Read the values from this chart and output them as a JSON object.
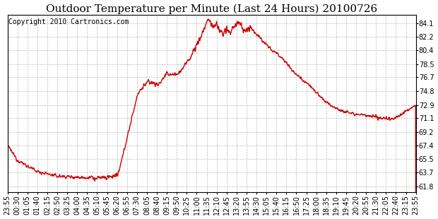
{
  "title": "Outdoor Temperature per Minute (Last 24 Hours) 20100726",
  "copyright_text": "Copyright 2010 Cartronics.com",
  "line_color": "#cc0000",
  "background_color": "#ffffff",
  "plot_bg_color": "#ffffff",
  "grid_color": "#bbbbbb",
  "yticks": [
    61.8,
    63.7,
    65.5,
    67.4,
    69.2,
    71.1,
    72.9,
    74.8,
    76.7,
    78.5,
    80.4,
    82.2,
    84.1
  ],
  "ylim": [
    61.0,
    85.2
  ],
  "xtick_labels": [
    "23:55",
    "00:30",
    "01:05",
    "01:40",
    "02:15",
    "02:50",
    "03:25",
    "04:00",
    "04:35",
    "05:10",
    "05:45",
    "06:20",
    "06:55",
    "07:30",
    "08:05",
    "08:40",
    "09:15",
    "09:50",
    "10:25",
    "11:00",
    "11:35",
    "12:10",
    "12:45",
    "13:20",
    "13:55",
    "14:30",
    "15:05",
    "15:40",
    "16:15",
    "16:50",
    "17:25",
    "18:00",
    "18:35",
    "19:10",
    "19:45",
    "20:20",
    "20:55",
    "21:30",
    "22:05",
    "22:40",
    "23:15",
    "23:55"
  ],
  "title_fontsize": 11,
  "copyright_fontsize": 7,
  "tick_fontsize": 7,
  "line_width": 1.0
}
